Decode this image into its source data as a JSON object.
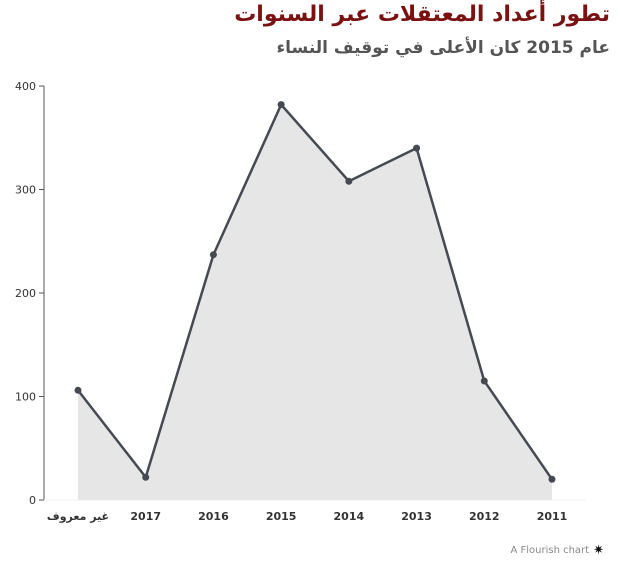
{
  "header": {
    "title": "تطور أعداد المعتقلات عبر السنوات",
    "subtitle": "عام 2015 كان الأعلى في توقيف النساء"
  },
  "credit": {
    "text": "A Flourish chart",
    "icon": "flourish-asterisk-icon"
  },
  "colors": {
    "line": "#454a52",
    "area": "#e6e6e6",
    "title": "#7a1212",
    "grid": "#eeeeee"
  },
  "chart_data": {
    "type": "area",
    "categories": [
      "غير معروف",
      "2017",
      "2016",
      "2015",
      "2014",
      "2013",
      "2012",
      "2011"
    ],
    "values": [
      106,
      22,
      237,
      382,
      308,
      340,
      115,
      20
    ],
    "yticks": [
      0,
      100,
      200,
      300,
      400
    ],
    "ylim": [
      0,
      400
    ],
    "xlabel": "",
    "ylabel": "",
    "grid": false,
    "markers": true
  }
}
